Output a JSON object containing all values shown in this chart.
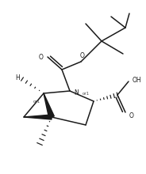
{
  "background_color": "#ffffff",
  "line_color": "#1a1a1a",
  "lw": 1.1,
  "fs": 5.5,
  "figsize": [
    1.84,
    2.2
  ],
  "dpi": 100,
  "xlim": [
    0,
    184
  ],
  "ylim": [
    0,
    220
  ]
}
